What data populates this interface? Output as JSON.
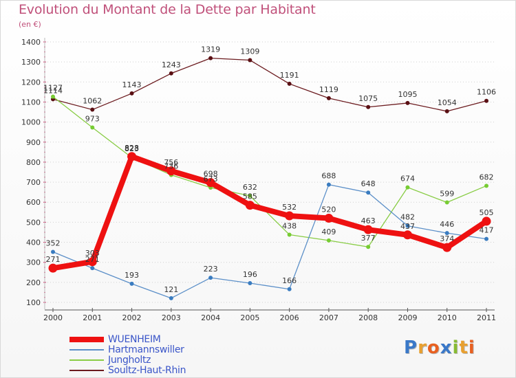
{
  "chart_data": {
    "type": "line",
    "title": "Evolution du Montant de la Dette par Habitant",
    "subtitle": "(en €)",
    "x": [
      "2000",
      "2001",
      "2002",
      "2003",
      "2004",
      "2005",
      "2006",
      "2007",
      "2008",
      "2009",
      "2010",
      "2011"
    ],
    "yticks": [
      100,
      200,
      300,
      400,
      500,
      600,
      700,
      800,
      900,
      1000,
      1100,
      1200,
      1300,
      1400
    ],
    "ylim": [
      100,
      1400
    ],
    "grid": "horizontal-dotted",
    "legend_position": "bottom-left",
    "series": [
      {
        "name": "Soultz-Haut-Rhin",
        "color": "#6b1a1e",
        "values": [
          1114,
          1062,
          1143,
          1243,
          1319,
          1309,
          1191,
          1119,
          1075,
          1095,
          1054,
          1106
        ]
      },
      {
        "name": "Jungholtz",
        "color": "#88cc44",
        "values": [
          1127,
          973,
          823,
          736,
          673,
          632,
          438,
          409,
          377,
          674,
          599,
          682
        ]
      },
      {
        "name": "Hartmannswiller",
        "color": "#5b8fc8",
        "values": [
          352,
          271,
          193,
          121,
          223,
          196,
          166,
          688,
          648,
          482,
          446,
          417
        ]
      },
      {
        "name": "WUENHEIM",
        "color": "#ee1111",
        "values": [
          271,
          303,
          828,
          756,
          698,
          585,
          532,
          520,
          463,
          437,
          374,
          505
        ]
      }
    ]
  },
  "logo": {
    "letters": [
      "P",
      "r",
      "o",
      "x",
      "i",
      "t",
      "i"
    ],
    "colors": [
      "#3a78c8",
      "#e8a030",
      "#e86020",
      "#3a78c8",
      "#88bb33",
      "#e8a030",
      "#e86020"
    ]
  }
}
